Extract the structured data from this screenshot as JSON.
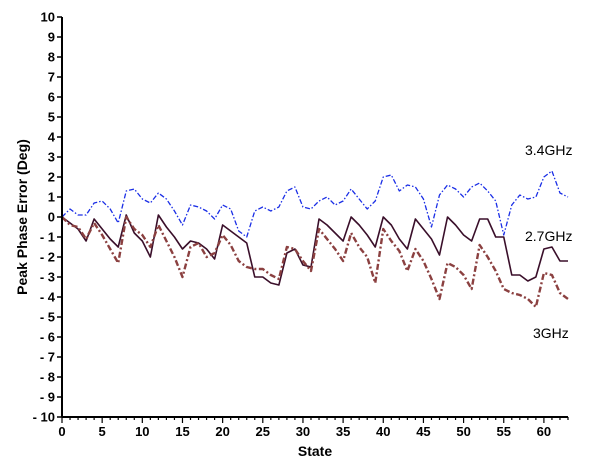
{
  "chart_data": {
    "type": "line",
    "title": "",
    "xlabel": "State",
    "ylabel": "Peak Phase Error (Deg)",
    "xlim": [
      0,
      63
    ],
    "ylim": [
      -10,
      10
    ],
    "xticks": [
      0,
      5,
      10,
      15,
      20,
      25,
      30,
      35,
      40,
      45,
      50,
      55,
      60
    ],
    "xtick_labels": [
      "0",
      "5",
      "10",
      "15",
      "20",
      "25",
      "30",
      "35",
      "40",
      "45",
      "50",
      "55",
      "60"
    ],
    "yticks": [
      10,
      9,
      8,
      7,
      6,
      5,
      4,
      3,
      2,
      1,
      0,
      -1,
      -2,
      -3,
      -4,
      -5,
      -6,
      -7,
      -8,
      -9,
      -10
    ],
    "ytick_labels": [
      "10",
      "9",
      "8",
      "7",
      "6",
      "5",
      "4",
      "3",
      "2",
      "1",
      "0",
      "- 1",
      "- 2",
      "- 3",
      "- 4",
      "- 5",
      "- 6",
      "- 7",
      "- 8",
      "- 9",
      "- 10"
    ],
    "grid": false,
    "legend": "inline labels",
    "series": [
      {
        "name": "3.4GHz",
        "color": "#1a2ee6",
        "style": "dash-dot",
        "x": [
          0,
          1,
          2,
          3,
          4,
          5,
          6,
          7,
          8,
          9,
          10,
          11,
          12,
          13,
          14,
          15,
          16,
          17,
          18,
          19,
          20,
          21,
          22,
          23,
          24,
          25,
          26,
          27,
          28,
          29,
          30,
          31,
          32,
          33,
          34,
          35,
          36,
          37,
          38,
          39,
          40,
          41,
          42,
          43,
          44,
          45,
          46,
          47,
          48,
          49,
          50,
          51,
          52,
          53,
          54,
          55,
          56,
          57,
          58,
          59,
          60,
          61,
          62,
          63
        ],
        "y": [
          0,
          0.4,
          0.1,
          0.1,
          0.7,
          0.8,
          0.4,
          -0.3,
          1.3,
          1.4,
          0.9,
          0.7,
          1.2,
          0.9,
          0.3,
          -0.4,
          0.6,
          0.5,
          0.3,
          -0.1,
          0.6,
          0.4,
          -0.7,
          -1.0,
          0.3,
          0.5,
          0.3,
          0.5,
          1.3,
          1.5,
          0.5,
          0.4,
          0.8,
          1.0,
          0.6,
          0.8,
          1.4,
          0.9,
          0.4,
          0.8,
          2.0,
          2.1,
          1.3,
          1.6,
          1.5,
          0.9,
          -0.5,
          1.1,
          1.6,
          1.4,
          1.0,
          1.5,
          1.7,
          1.3,
          0.8,
          -0.9,
          0.6,
          1.1,
          0.9,
          1.0,
          2.0,
          2.3,
          1.2,
          1.0
        ]
      },
      {
        "name": "2.7GHz",
        "color": "#3a0f2a",
        "style": "solid",
        "x": [
          0,
          1,
          2,
          3,
          4,
          5,
          6,
          7,
          8,
          9,
          10,
          11,
          12,
          13,
          14,
          15,
          16,
          17,
          18,
          19,
          20,
          21,
          22,
          23,
          24,
          25,
          26,
          27,
          28,
          29,
          30,
          31,
          32,
          33,
          34,
          35,
          36,
          37,
          38,
          39,
          40,
          41,
          42,
          43,
          44,
          45,
          46,
          47,
          48,
          49,
          50,
          51,
          52,
          53,
          54,
          55,
          56,
          57,
          58,
          59,
          60,
          61,
          62,
          63
        ],
        "y": [
          0,
          -0.3,
          -0.6,
          -1.2,
          -0.1,
          -0.6,
          -1.1,
          -1.5,
          0.1,
          -0.8,
          -1.2,
          -2.0,
          0.1,
          -0.5,
          -1.0,
          -1.6,
          -1.2,
          -1.3,
          -1.6,
          -2.1,
          -0.4,
          -0.7,
          -1.0,
          -1.3,
          -3.0,
          -3.0,
          -3.3,
          -3.4,
          -1.8,
          -1.6,
          -2.4,
          -2.5,
          -0.1,
          -0.4,
          -0.8,
          -1.2,
          0,
          -0.4,
          -0.9,
          -1.5,
          0,
          -0.4,
          -1.1,
          -1.6,
          -0.1,
          -0.6,
          -1.1,
          -1.9,
          0,
          -0.4,
          -0.9,
          -1.2,
          -0.1,
          -0.1,
          -1.0,
          -1.0,
          -2.9,
          -2.9,
          -3.2,
          -3.0,
          -1.6,
          -1.5,
          -2.2,
          -2.2
        ]
      },
      {
        "name": "3GHz",
        "color": "#8b4040",
        "style": "dash-dot-thick",
        "x": [
          0,
          1,
          2,
          3,
          4,
          5,
          6,
          7,
          8,
          9,
          10,
          11,
          12,
          13,
          14,
          15,
          16,
          17,
          18,
          19,
          20,
          21,
          22,
          23,
          24,
          25,
          26,
          27,
          28,
          29,
          30,
          31,
          32,
          33,
          34,
          35,
          36,
          37,
          38,
          39,
          40,
          41,
          42,
          43,
          44,
          45,
          46,
          47,
          48,
          49,
          50,
          51,
          52,
          53,
          54,
          55,
          56,
          57,
          58,
          59,
          60,
          61,
          62,
          63
        ],
        "y": [
          0,
          -0.4,
          -0.5,
          -1.1,
          -0.3,
          -0.9,
          -1.6,
          -2.3,
          0,
          -0.6,
          -0.9,
          -1.5,
          -0.4,
          -1.2,
          -2.0,
          -3.0,
          -1.5,
          -1.3,
          -2.0,
          -1.8,
          -0.9,
          -1.4,
          -2.2,
          -2.5,
          -2.6,
          -2.6,
          -2.9,
          -3.1,
          -1.5,
          -1.6,
          -2.2,
          -2.7,
          -0.6,
          -1.1,
          -1.6,
          -2.2,
          -0.8,
          -1.5,
          -2.0,
          -3.3,
          -0.6,
          -1.2,
          -1.7,
          -2.7,
          -1.6,
          -2.2,
          -3.1,
          -4.1,
          -2.3,
          -2.5,
          -2.9,
          -3.6,
          -1.4,
          -2.0,
          -2.7,
          -3.6,
          -3.8,
          -3.9,
          -4.1,
          -4.5,
          -2.8,
          -2.9,
          -3.8,
          -4.1
        ]
      }
    ]
  }
}
